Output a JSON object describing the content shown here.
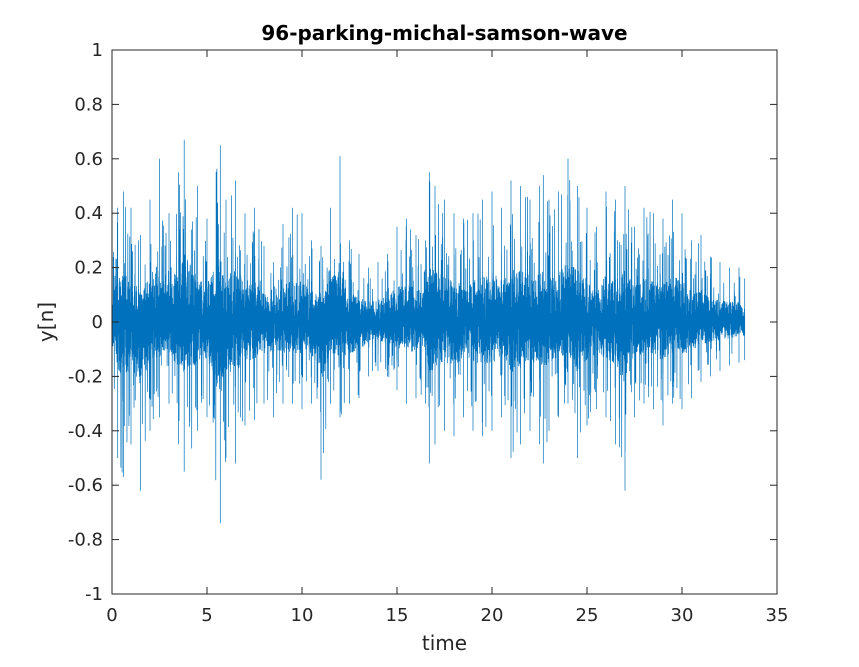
{
  "chart_data": {
    "type": "line",
    "title": "96-parking-michal-samson-wave",
    "xlabel": "time",
    "ylabel": "y[n]",
    "xlim": [
      0,
      35
    ],
    "ylim": [
      -1,
      1
    ],
    "xticks": [
      0,
      5,
      10,
      15,
      20,
      25,
      30,
      35
    ],
    "xtick_labels": [
      "0",
      "5",
      "10",
      "15",
      "20",
      "25",
      "30",
      "35"
    ],
    "yticks": [
      -1,
      -0.8,
      -0.6,
      -0.4,
      -0.2,
      0,
      0.2,
      0.4,
      0.6,
      0.8,
      1
    ],
    "ytick_labels": [
      "-1",
      "-0.8",
      "-0.6",
      "-0.4",
      "-0.2",
      "0",
      "0.2",
      "0.4",
      "0.6",
      "0.8",
      "1"
    ],
    "grid": false,
    "series": [
      {
        "color": "#0072bd",
        "signal_duration": 33.3,
        "envelope": {
          "time": [
            0,
            0.3,
            0.6,
            1,
            1.5,
            2,
            2.5,
            3,
            3.5,
            3.8,
            4.5,
            5,
            5.7,
            6,
            6.5,
            7,
            7.5,
            8,
            8.5,
            9,
            9.5,
            10,
            10.5,
            11,
            11.5,
            12,
            12.5,
            13,
            13.5,
            14,
            14.5,
            15,
            15.5,
            16,
            16.5,
            16.7,
            17,
            17.5,
            18,
            18.5,
            19,
            19.5,
            20,
            20.5,
            21,
            21.5,
            22,
            22.5,
            22.7,
            23,
            23.5,
            24,
            24.5,
            25,
            25.5,
            26,
            26.5,
            27,
            27.5,
            28,
            28.5,
            29,
            29.5,
            30,
            30.5,
            31,
            31.5,
            32,
            32.5,
            33,
            33.3
          ],
          "upper": [
            0.3,
            0.42,
            0.48,
            0.42,
            0.32,
            0.45,
            0.6,
            0.4,
            0.55,
            0.67,
            0.5,
            0.38,
            0.65,
            0.45,
            0.52,
            0.4,
            0.42,
            0.28,
            0.22,
            0.36,
            0.42,
            0.4,
            0.3,
            0.28,
            0.42,
            0.61,
            0.3,
            0.25,
            0.2,
            0.22,
            0.25,
            0.35,
            0.38,
            0.32,
            0.3,
            0.55,
            0.5,
            0.45,
            0.4,
            0.38,
            0.4,
            0.45,
            0.48,
            0.42,
            0.52,
            0.5,
            0.45,
            0.5,
            0.54,
            0.45,
            0.48,
            0.6,
            0.5,
            0.42,
            0.35,
            0.48,
            0.45,
            0.5,
            0.35,
            0.42,
            0.4,
            0.38,
            0.45,
            0.4,
            0.3,
            0.32,
            0.24,
            0.22,
            0.2,
            0.2,
            0.16
          ],
          "lower": [
            -0.3,
            -0.5,
            -0.57,
            -0.45,
            -0.62,
            -0.4,
            -0.35,
            -0.3,
            -0.45,
            -0.55,
            -0.4,
            -0.35,
            -0.74,
            -0.5,
            -0.52,
            -0.38,
            -0.36,
            -0.3,
            -0.35,
            -0.3,
            -0.3,
            -0.32,
            -0.3,
            -0.58,
            -0.3,
            -0.35,
            -0.3,
            -0.28,
            -0.2,
            -0.18,
            -0.2,
            -0.25,
            -0.3,
            -0.28,
            -0.3,
            -0.52,
            -0.45,
            -0.4,
            -0.42,
            -0.35,
            -0.4,
            -0.42,
            -0.4,
            -0.35,
            -0.5,
            -0.45,
            -0.4,
            -0.45,
            -0.52,
            -0.4,
            -0.35,
            -0.3,
            -0.5,
            -0.38,
            -0.32,
            -0.35,
            -0.45,
            -0.62,
            -0.35,
            -0.3,
            -0.32,
            -0.38,
            -0.3,
            -0.32,
            -0.28,
            -0.22,
            -0.2,
            -0.18,
            -0.16,
            -0.15,
            -0.14
          ]
        }
      }
    ]
  }
}
